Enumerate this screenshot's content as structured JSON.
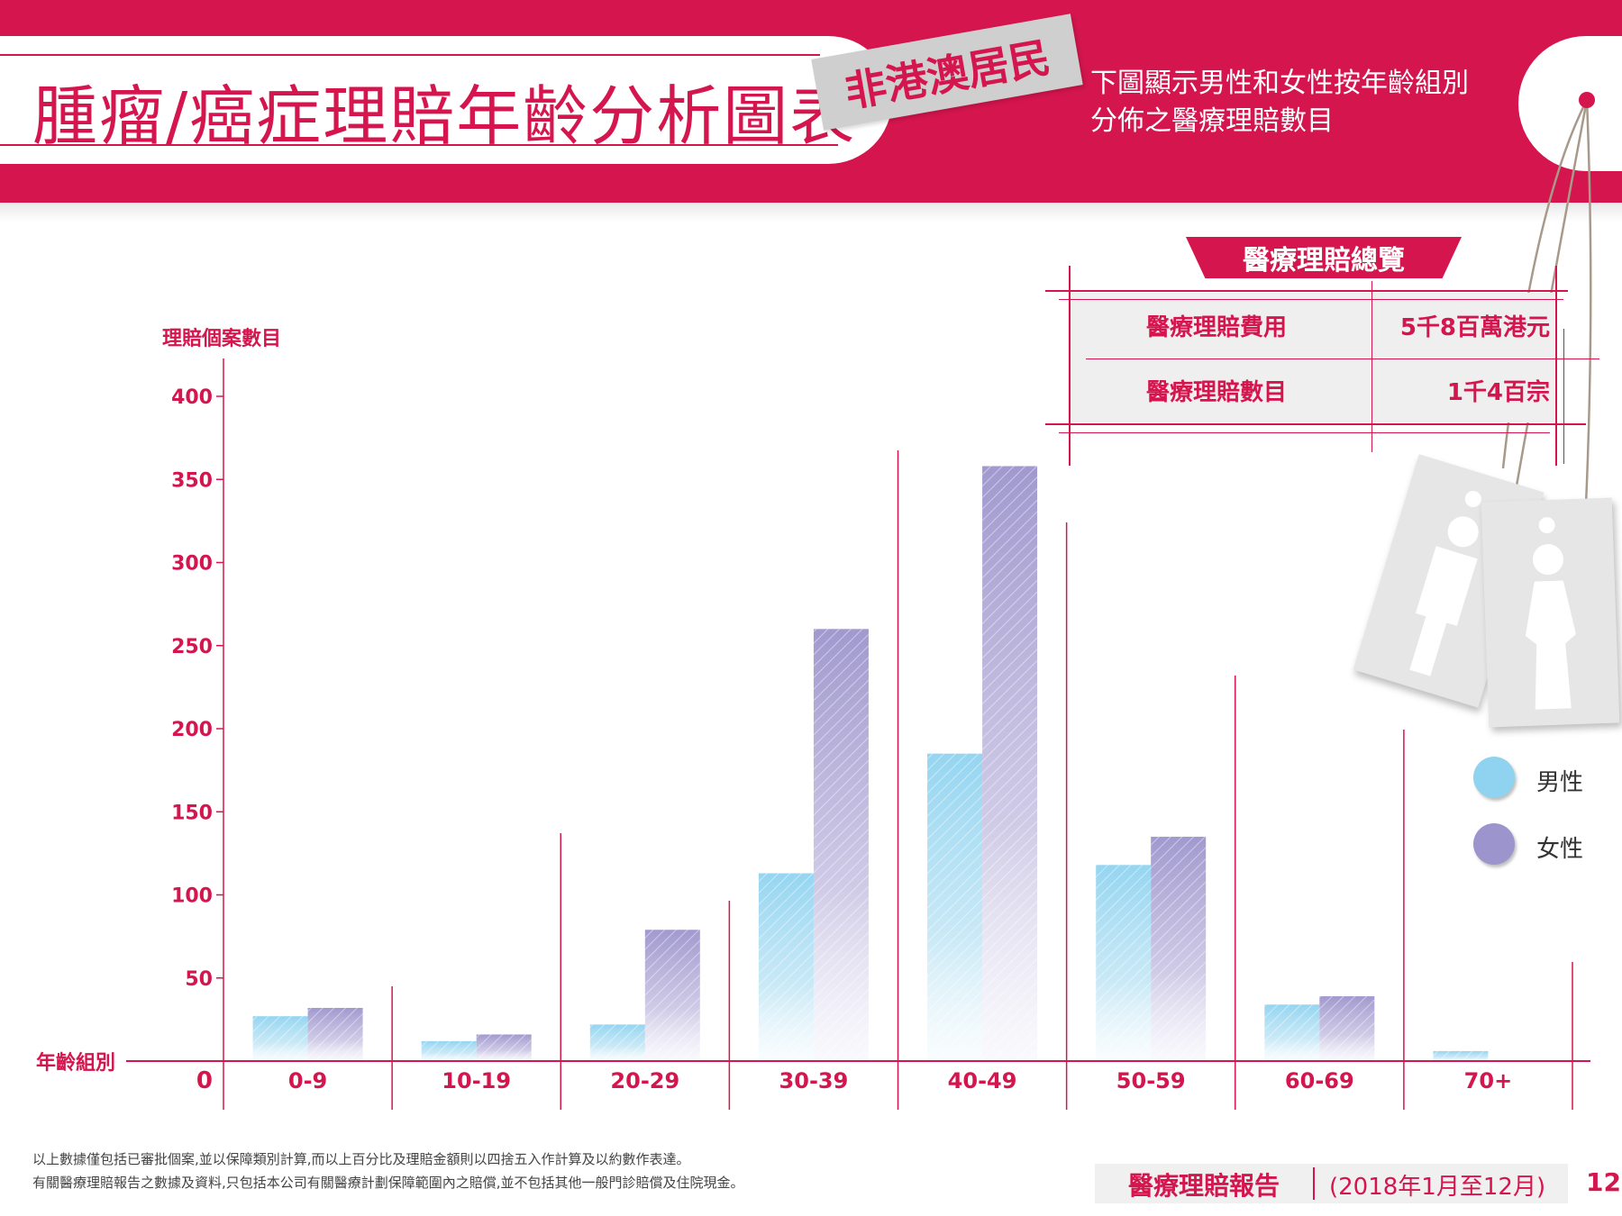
{
  "header": {
    "title": "腫瘤/癌症理賠年齡分析圖表",
    "stamp": "非港澳居民",
    "description_line1": "下圖顯示男性和女性按年齡組別",
    "description_line2": "分佈之醫療理賠數目"
  },
  "summary": {
    "title": "醫療理賠總覽",
    "rows": [
      {
        "label": "醫療理賠費用",
        "value": "5千8百萬港元"
      },
      {
        "label": "醫療理賠數目",
        "value": "1千4百宗"
      }
    ]
  },
  "legend": {
    "male": "男性",
    "female": "女性"
  },
  "colors": {
    "accent": "#d5154e",
    "male": "#8fd3f0",
    "female": "#9c94cc"
  },
  "icons": [
    "male-figure-icon",
    "female-figure-icon"
  ],
  "chart_data": {
    "type": "bar",
    "ylabel": "理賠個案數目",
    "xlabel": "年齡組別",
    "categories": [
      "0-9",
      "10-19",
      "20-29",
      "30-39",
      "40-49",
      "50-59",
      "60-69",
      "70+"
    ],
    "series": [
      {
        "name": "男性",
        "values": [
          27,
          12,
          22,
          113,
          185,
          118,
          34,
          6
        ]
      },
      {
        "name": "女性",
        "values": [
          32,
          16,
          79,
          260,
          358,
          135,
          39,
          0
        ]
      }
    ],
    "ylim": [
      0,
      400
    ],
    "yticks": [
      0,
      50,
      100,
      150,
      200,
      250,
      300,
      350,
      400
    ],
    "legend": "right",
    "grid": false
  },
  "footer": {
    "note1": "以上數據僅包括已審批個案,並以保障類別計算,而以上百分比及理賠金額則以四捨五入作計算及以約數作表達。",
    "note2": "有關醫療理賠報告之數據及資料,只包括本公司有關醫療計劃保障範圍內之賠償,並不包括其他一般門診賠償及住院現金。",
    "report": "醫療理賠報告",
    "period": "(2018年1月至12月)",
    "page": "12"
  }
}
